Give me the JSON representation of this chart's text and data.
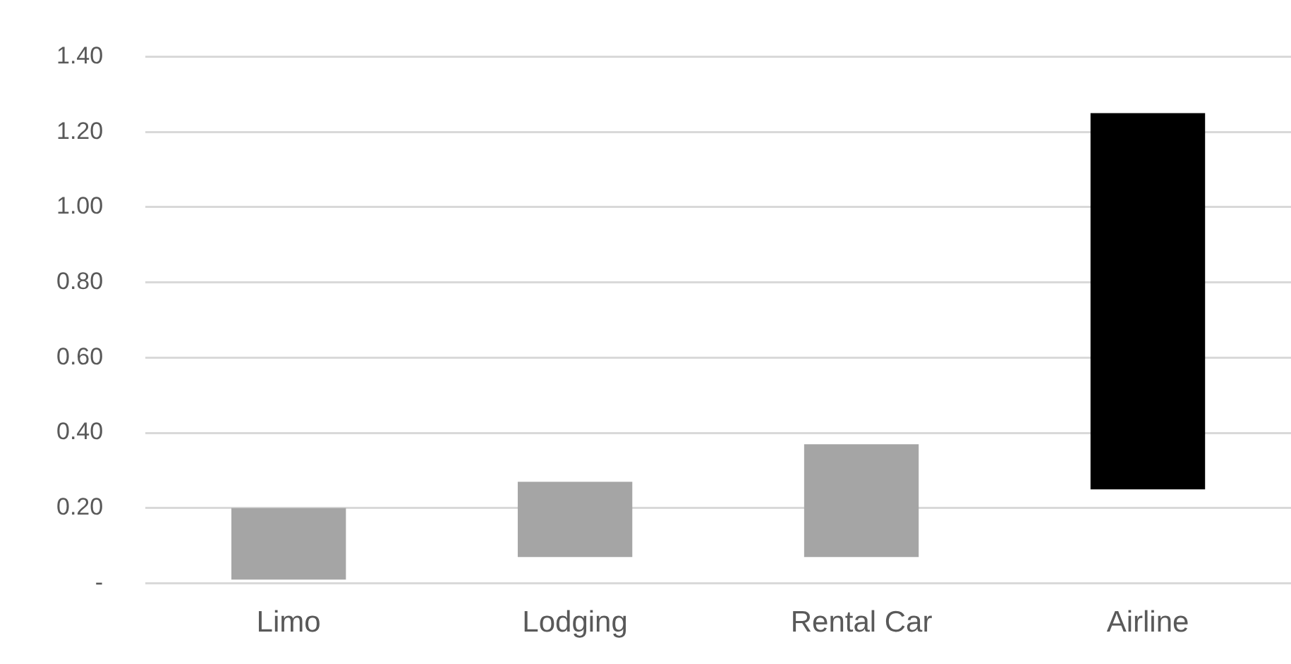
{
  "chart_data": {
    "type": "bar",
    "categories": [
      "Limo",
      "Lodging",
      "Rental Car",
      "Airline"
    ],
    "base": [
      0.01,
      0.07,
      0.07,
      0.25
    ],
    "values": [
      0.19,
      0.2,
      0.3,
      1.0
    ],
    "colors": [
      "#a5a5a5",
      "#a5a5a5",
      "#a5a5a5",
      "#000000"
    ],
    "ylim": [
      0,
      1.4
    ],
    "yticks": [
      {
        "value": 0,
        "label": "-"
      },
      {
        "value": 0.2,
        "label": "0.20"
      },
      {
        "value": 0.4,
        "label": "0.40"
      },
      {
        "value": 0.6,
        "label": "0.60"
      },
      {
        "value": 0.8,
        "label": "0.80"
      },
      {
        "value": 1,
        "label": "1.00"
      },
      {
        "value": 1.2,
        "label": "1.20"
      },
      {
        "value": 1.4,
        "label": "1.40"
      }
    ],
    "grid": "y",
    "legend": false
  }
}
